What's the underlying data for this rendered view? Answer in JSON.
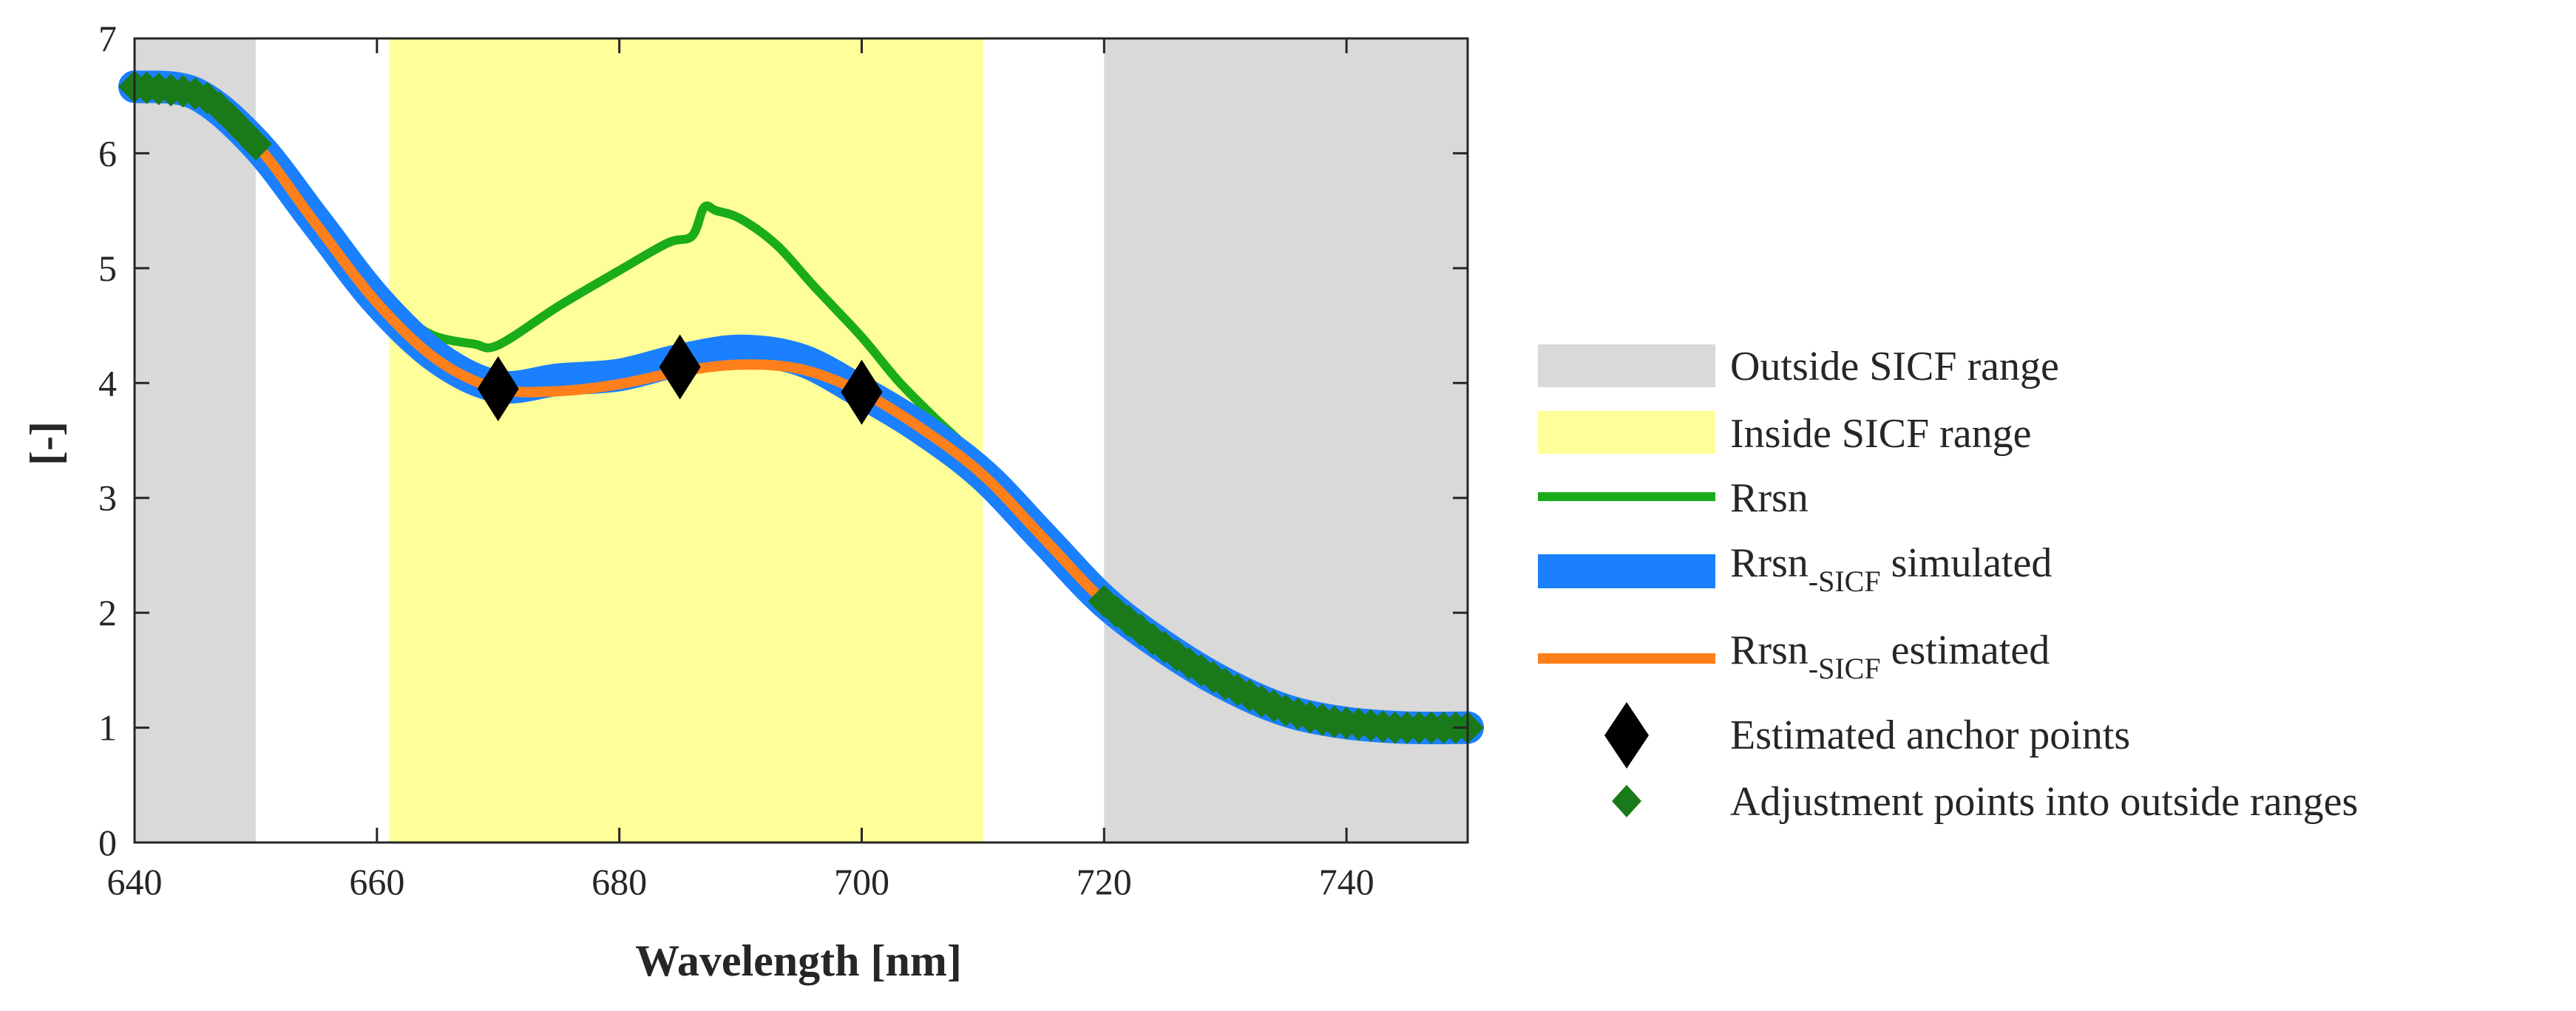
{
  "chart_data": {
    "type": "line",
    "title": "",
    "xlabel": "Wavelength [nm]",
    "ylabel": "[-]",
    "xlim": [
      640,
      750
    ],
    "ylim": [
      0,
      7
    ],
    "xticks": [
      640,
      660,
      680,
      700,
      720,
      740
    ],
    "yticks": [
      0,
      1,
      2,
      3,
      4,
      5,
      6,
      7
    ],
    "grid": false,
    "legend_position": "right",
    "colors": {
      "outside": "#d9d9d9",
      "inside": "#ffff99",
      "rrsn": "#1aac1a",
      "simulated": "#1a80ff",
      "estimated": "#ff7f1a",
      "anchor": "#000000",
      "adjust": "#1a7a1a",
      "axis": "#262626"
    },
    "regions": [
      {
        "name": "Outside SICF range",
        "x": [
          640,
          650
        ]
      },
      {
        "name": "Inside SICF range",
        "x": [
          661,
          710
        ]
      },
      {
        "name": "Outside SICF range",
        "x": [
          720,
          750
        ]
      }
    ],
    "series": [
      {
        "name": "Rrsn",
        "x": [
          640,
          645,
          650,
          655,
          660,
          663,
          665,
          668,
          670,
          675,
          680,
          684,
          686,
          687,
          688,
          690,
          693,
          696,
          700,
          703,
          706,
          710,
          715,
          720,
          725,
          730,
          735,
          740,
          745,
          750
        ],
        "y": [
          6.58,
          6.52,
          6.08,
          5.4,
          4.78,
          4.52,
          4.4,
          4.34,
          4.33,
          4.67,
          4.98,
          5.22,
          5.28,
          5.53,
          5.5,
          5.43,
          5.2,
          4.85,
          4.4,
          4.02,
          3.7,
          3.3,
          2.72,
          2.1,
          1.7,
          1.38,
          1.15,
          1.04,
          1.0,
          1.0
        ]
      },
      {
        "name": "Rrsn-SICF simulated",
        "x": [
          640,
          645,
          650,
          655,
          660,
          665,
          670,
          675,
          680,
          685,
          690,
          695,
          700,
          705,
          710,
          715,
          720,
          725,
          730,
          735,
          740,
          745,
          750
        ],
        "y": [
          6.58,
          6.52,
          6.08,
          5.4,
          4.72,
          4.22,
          3.97,
          4.03,
          4.07,
          4.2,
          4.28,
          4.2,
          3.92,
          3.6,
          3.2,
          2.65,
          2.1,
          1.7,
          1.38,
          1.15,
          1.04,
          1.0,
          1.0
        ]
      },
      {
        "name": "Rrsn-SICF estimated",
        "x": [
          640,
          645,
          650,
          655,
          660,
          665,
          670,
          675,
          680,
          685,
          690,
          695,
          700,
          705,
          710,
          715,
          720,
          725,
          730,
          735,
          740,
          745,
          750
        ],
        "y": [
          6.58,
          6.52,
          6.08,
          5.38,
          4.7,
          4.2,
          3.95,
          3.93,
          3.99,
          4.1,
          4.16,
          4.12,
          3.92,
          3.6,
          3.2,
          2.65,
          2.1,
          1.7,
          1.38,
          1.15,
          1.04,
          1.0,
          1.0
        ]
      }
    ],
    "anchor_points": {
      "name": "Estimated anchor points",
      "x": [
        670,
        685,
        700
      ],
      "y": [
        3.95,
        4.14,
        3.92
      ]
    },
    "adjustment_points": {
      "name": "Adjustment points into outside ranges",
      "x": [
        640,
        641,
        642,
        643,
        644,
        645,
        646,
        647,
        648,
        649,
        650,
        720,
        721,
        722,
        723,
        724,
        725,
        726,
        727,
        728,
        729,
        730,
        731,
        732,
        733,
        734,
        735,
        736,
        737,
        738,
        739,
        740,
        741,
        742,
        743,
        744,
        745,
        746,
        747,
        748,
        749,
        750
      ],
      "y": [
        6.58,
        6.57,
        6.56,
        6.55,
        6.54,
        6.52,
        6.48,
        6.4,
        6.3,
        6.19,
        6.08,
        2.1,
        2.01,
        1.93,
        1.85,
        1.77,
        1.7,
        1.63,
        1.56,
        1.5,
        1.44,
        1.38,
        1.33,
        1.28,
        1.23,
        1.19,
        1.15,
        1.12,
        1.09,
        1.07,
        1.05,
        1.04,
        1.03,
        1.02,
        1.01,
        1.0,
        1.0,
        1.0,
        1.0,
        1.0,
        1.0,
        1.0
      ]
    },
    "legend": {
      "outside": "Outside SICF range",
      "inside": "Inside SICF range",
      "rrsn": "Rrsn",
      "sim_base": "Rrsn",
      "sim_sub": "-SICF",
      "sim_suffix": " simulated",
      "est_base": "Rrsn",
      "est_sub": "-SICF",
      "est_suffix": " estimated",
      "anchor": "Estimated anchor points",
      "adjust": "Adjustment points into outside ranges"
    }
  }
}
